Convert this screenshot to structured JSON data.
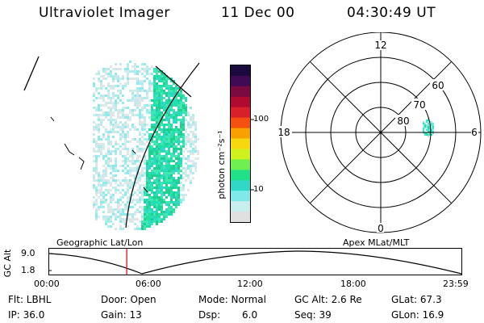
{
  "header": {
    "instrument": "Ultraviolet Imager",
    "date": "11 Dec 00",
    "time": "04:30:49 UT"
  },
  "left_panel": {
    "title": "Geographic Lat/Lon"
  },
  "colorbar": {
    "unit_label": "photon cm⁻²s⁻¹",
    "scale": "log",
    "ticks": [
      "100",
      "10"
    ],
    "colors": [
      "#1a0a40",
      "#400a55",
      "#7a0a40",
      "#b00a30",
      "#d8202a",
      "#f55010",
      "#f8a000",
      "#f7d810",
      "#d0f020",
      "#70f050",
      "#20e088",
      "#30d8c8",
      "#80e8e8",
      "#c8eeee",
      "#e0e0e0"
    ]
  },
  "polar_plot": {
    "title": "Apex MLat/MLT",
    "mlt_labels": [
      "12",
      "18",
      "6",
      "0"
    ],
    "mlat_labels": [
      "60",
      "70",
      "80"
    ]
  },
  "altitude_plot": {
    "ylabel": "GC Alt",
    "y_ticks": [
      "9.0",
      "1.8"
    ],
    "x_ticks": [
      "00:00",
      "06:00",
      "12:00",
      "18:00",
      "23:59"
    ],
    "current_time_hours": 4.51,
    "marker_color": "#e01010"
  },
  "status": {
    "flt": "Flt: LBHL",
    "ip": "IP: 36.0",
    "door": "Door: Open",
    "gain": "Gain: 13",
    "mode": "Mode: Normal",
    "dsp_label": "Dsp:",
    "dsp_value": "6.0",
    "gc_alt": "GC Alt: 2.6 Re",
    "seq": "Seq: 39",
    "glat": "GLat: 67.3",
    "glon": "GLon: 16.9"
  }
}
